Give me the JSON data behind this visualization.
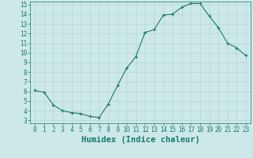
{
  "xlabel": "Humidex (Indice chaleur)",
  "x": [
    0,
    1,
    2,
    3,
    4,
    5,
    6,
    7,
    8,
    9,
    10,
    11,
    12,
    13,
    14,
    15,
    16,
    17,
    18,
    19,
    20,
    21,
    22,
    23
  ],
  "y": [
    6.1,
    5.9,
    4.6,
    4.0,
    3.8,
    3.7,
    3.4,
    3.3,
    4.7,
    6.6,
    8.4,
    9.6,
    12.1,
    12.4,
    13.9,
    14.0,
    14.7,
    15.1,
    15.1,
    13.8,
    12.6,
    11.0,
    10.5,
    9.7
  ],
  "line_color": "#1a7a6e",
  "marker": "+",
  "marker_size": 3,
  "bg_color": "#cce8e8",
  "grid_color": "#b8d8d8",
  "ylim": [
    3,
    15
  ],
  "xlim": [
    -0.5,
    23.5
  ],
  "yticks": [
    3,
    4,
    5,
    6,
    7,
    8,
    9,
    10,
    11,
    12,
    13,
    14,
    15
  ],
  "xticks": [
    0,
    1,
    2,
    3,
    4,
    5,
    6,
    7,
    8,
    9,
    10,
    11,
    12,
    13,
    14,
    15,
    16,
    17,
    18,
    19,
    20,
    21,
    22,
    23
  ],
  "tick_fontsize": 5.5,
  "xlabel_fontsize": 7.5,
  "label_color": "#1a7a6e"
}
